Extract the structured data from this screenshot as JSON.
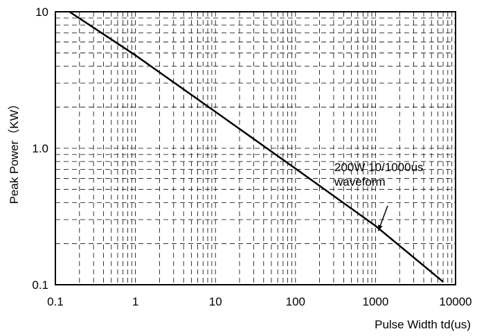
{
  "chart_data": {
    "type": "line",
    "title": "",
    "xlabel": "Pulse Width td(us)",
    "ylabel": "Peak Power（KW）",
    "x_scale": "log",
    "y_scale": "log",
    "xlim": [
      0.1,
      10000
    ],
    "ylim": [
      0.1,
      10
    ],
    "grid": true,
    "x_ticks": [
      {
        "value": 0.1,
        "label": "0.1"
      },
      {
        "value": 1,
        "label": "1"
      },
      {
        "value": 10,
        "label": "10"
      },
      {
        "value": 100,
        "label": "100"
      },
      {
        "value": 1000,
        "label": "1000"
      },
      {
        "value": 10000,
        "label": "10000"
      }
    ],
    "y_ticks": [
      {
        "value": 0.1,
        "label": "0.1"
      },
      {
        "value": 1,
        "label": "1.0"
      },
      {
        "value": 10,
        "label": "10"
      }
    ],
    "series": [
      {
        "name": "",
        "x": [
          0.15,
          1,
          10,
          100,
          1000,
          7000
        ],
        "y": [
          10,
          4.8,
          1.85,
          0.71,
          0.27,
          0.105
        ]
      }
    ],
    "annotations": [
      {
        "lines": [
          "200W 10/1000us",
          "waveform"
        ],
        "arrow_to": {
          "x": 1000,
          "y": 0.26
        }
      }
    ]
  }
}
